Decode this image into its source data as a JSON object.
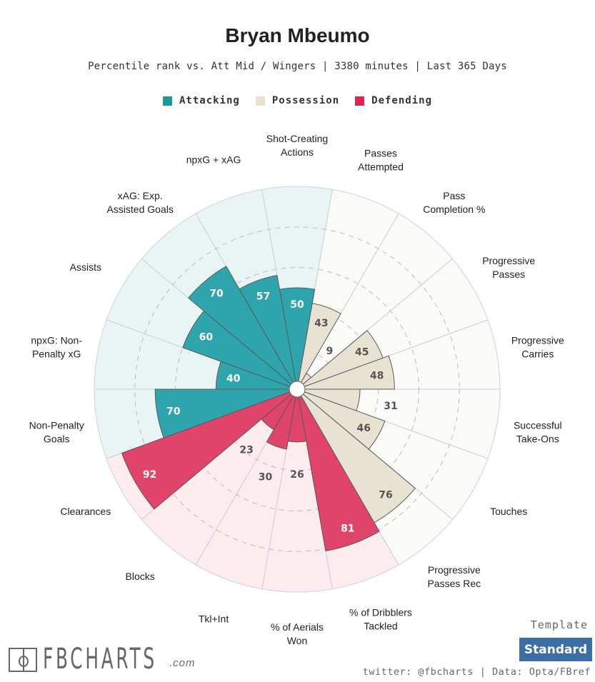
{
  "header": {
    "title": "Bryan Mbeumo",
    "subtitle": "Percentile rank vs. Att Mid / Wingers | 3380 minutes | Last 365 Days"
  },
  "legend": [
    {
      "label": "Attacking",
      "color": "#1a9a9f"
    },
    {
      "label": "Possession",
      "color": "#e8e2cf"
    },
    {
      "label": "Defending",
      "color": "#e0234f"
    }
  ],
  "chart_data": {
    "type": "pizza",
    "value_range": [
      0,
      100
    ],
    "gridlines": [
      20,
      40,
      60,
      80
    ],
    "groups": {
      "Attacking": {
        "bar": "#2ea5ad",
        "bg": "#e9f5f5",
        "text": "#ffffff"
      },
      "Possession": {
        "bar": "#e8e2d2",
        "bg": "#fafaf8",
        "text": "#555555"
      },
      "Defending": {
        "bar": "#e0446a",
        "bg": "#fcebef",
        "text": "#ffffff"
      }
    },
    "slices": [
      {
        "label": [
          "Shot-Creating",
          "Actions"
        ],
        "value": 50,
        "group": "Attacking"
      },
      {
        "label": [
          "Passes",
          "Attempted"
        ],
        "value": 43,
        "group": "Possession"
      },
      {
        "label": [
          "Pass",
          "Completion %"
        ],
        "value": 9,
        "group": "Possession"
      },
      {
        "label": [
          "Progressive",
          "Passes"
        ],
        "value": 45,
        "group": "Possession"
      },
      {
        "label": [
          "Progressive",
          "Carries"
        ],
        "value": 48,
        "group": "Possession"
      },
      {
        "label": [
          "Successful",
          "Take-Ons"
        ],
        "value": 31,
        "group": "Possession"
      },
      {
        "label": [
          "Touches"
        ],
        "value": 46,
        "group": "Possession"
      },
      {
        "label": [
          "Progressive",
          "Passes Rec"
        ],
        "value": 76,
        "group": "Possession"
      },
      {
        "label": [
          "% of Dribblers",
          "Tackled"
        ],
        "value": 81,
        "group": "Defending"
      },
      {
        "label": [
          "% of Aerials",
          "Won"
        ],
        "value": 26,
        "group": "Defending"
      },
      {
        "label": [
          "Tkl+Int"
        ],
        "value": 30,
        "group": "Defending"
      },
      {
        "label": [
          "Blocks"
        ],
        "value": 23,
        "group": "Defending"
      },
      {
        "label": [
          "Clearances"
        ],
        "value": 92,
        "group": "Defending"
      },
      {
        "label": [
          "Non-Penalty",
          "Goals"
        ],
        "value": 70,
        "group": "Attacking"
      },
      {
        "label": [
          "npxG: Non-",
          "Penalty xG"
        ],
        "value": 40,
        "group": "Attacking"
      },
      {
        "label": [
          "Assists"
        ],
        "value": 60,
        "group": "Attacking"
      },
      {
        "label": [
          "xAG: Exp.",
          "Assisted Goals"
        ],
        "value": 70,
        "group": "Attacking"
      },
      {
        "label": [
          "npxG + xAG"
        ],
        "value": 57,
        "group": "Attacking"
      }
    ]
  },
  "footer": {
    "logo_text": "FBCHARTS",
    "logo_suffix": ".com",
    "template_label": "Template",
    "template_button": "Standard",
    "credit": "twitter: @fbcharts | Data: Opta/FBref"
  }
}
